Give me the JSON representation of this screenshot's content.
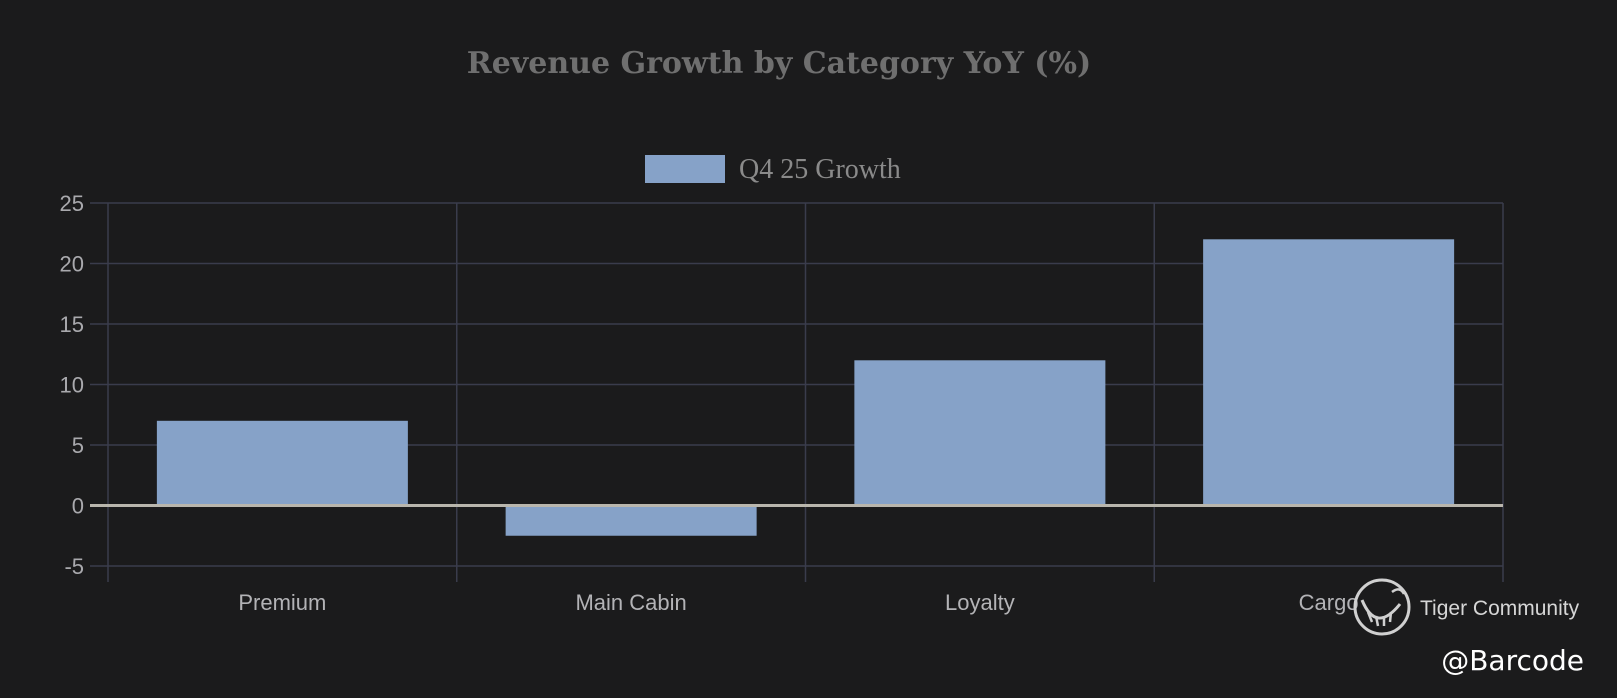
{
  "chart_data": {
    "type": "bar",
    "title": "Revenue Growth by Category YoY (%)",
    "categories": [
      "Premium",
      "Main Cabin",
      "Loyalty",
      "Cargo"
    ],
    "series": [
      {
        "name": "Q4 25 Growth",
        "values": [
          7,
          -2.5,
          12,
          22
        ],
        "color": "#86a2c8"
      }
    ],
    "ylim": [
      -5,
      25
    ],
    "yticks": [
      25,
      20,
      15,
      10,
      5,
      0,
      -5
    ],
    "grid": true,
    "legend_position": "top-center",
    "colors": {
      "background": "#1b1b1c",
      "grid": "#3a3c4c",
      "zero_line": "#b9b6ad"
    }
  },
  "watermark": {
    "community_label": "Tiger Community",
    "handle": "@Barcode",
    "icon": "tiger-logo-icon"
  }
}
